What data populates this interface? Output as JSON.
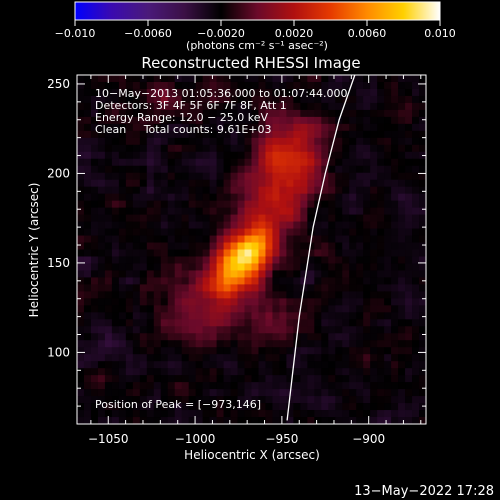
{
  "chart_data": {
    "type": "heatmap",
    "title": "Reconstructed RHESSI Image",
    "xlabel": "Heliocentric X (arcsec)",
    "ylabel": "Heliocentric Y (arcsec)",
    "xlim": [
      -1068,
      -867
    ],
    "ylim": [
      60,
      255
    ],
    "xticks": [
      -1050,
      -1000,
      -950,
      -900
    ],
    "yticks": [
      100,
      150,
      200,
      250
    ],
    "tick_labels_x": [
      "−1050",
      "−1000",
      "−950",
      "−900"
    ],
    "tick_labels_y": [
      "100",
      "150",
      "200",
      "250"
    ],
    "colorbar": {
      "range": [
        -0.01,
        0.01
      ],
      "ticks": [
        -0.01,
        -0.006,
        -0.002,
        0.002,
        0.006,
        0.01
      ],
      "tick_labels": [
        "−0.010",
        "−0.0060",
        "−0.0020",
        "0.0020",
        "0.0060",
        "0.010"
      ],
      "unit_label": "(photons cm⁻² s⁻¹ asec⁻²)",
      "colormap": [
        "#0000ff",
        "#3a0ab0",
        "#4a1a7a",
        "#3b1045",
        "#000000",
        "#6b0a2a",
        "#b01010",
        "#e63a00",
        "#ff8a00",
        "#ffd000",
        "#ffffff"
      ]
    },
    "annotations": [
      "10−May−2013 01:05:36.000 to 01:07:44.000",
      "Detectors: 3F 4F 5F 6F 7F 8F, Att 1",
      "Energy Range: 12.0 − 25.0 keV",
      "Clean     Total counts: 9.61E+03"
    ],
    "peak_label": "Position of Peak = [−973,146]",
    "peak": {
      "x": -973,
      "y": 146,
      "value": 0.01
    },
    "sources": [
      {
        "x": -973,
        "y": 152,
        "sx": 9,
        "sy": 17,
        "amp": 0.0105,
        "angle": -35
      },
      {
        "x": -950,
        "y": 195,
        "sx": 14,
        "sy": 22,
        "amp": 0.0038,
        "angle": -20
      },
      {
        "x": -945,
        "y": 215,
        "sx": 12,
        "sy": 14,
        "amp": 0.0028,
        "angle": 0
      },
      {
        "x": -1000,
        "y": 125,
        "sx": 16,
        "sy": 14,
        "amp": 0.0022,
        "angle": 0
      },
      {
        "x": -1015,
        "y": 240,
        "sx": 18,
        "sy": 10,
        "amp": 0.0016,
        "angle": 0
      },
      {
        "x": -960,
        "y": 120,
        "sx": 12,
        "sy": 12,
        "amp": 0.0018,
        "angle": 0
      }
    ],
    "background_level": -0.0022,
    "limb_curve": {
      "x": [
        -947,
        -940,
        -932,
        -925,
        -917,
        -908
      ],
      "y": [
        62,
        120,
        170,
        200,
        230,
        255
      ]
    }
  },
  "footer": {
    "timestamp": "13−May−2022 17:28"
  }
}
